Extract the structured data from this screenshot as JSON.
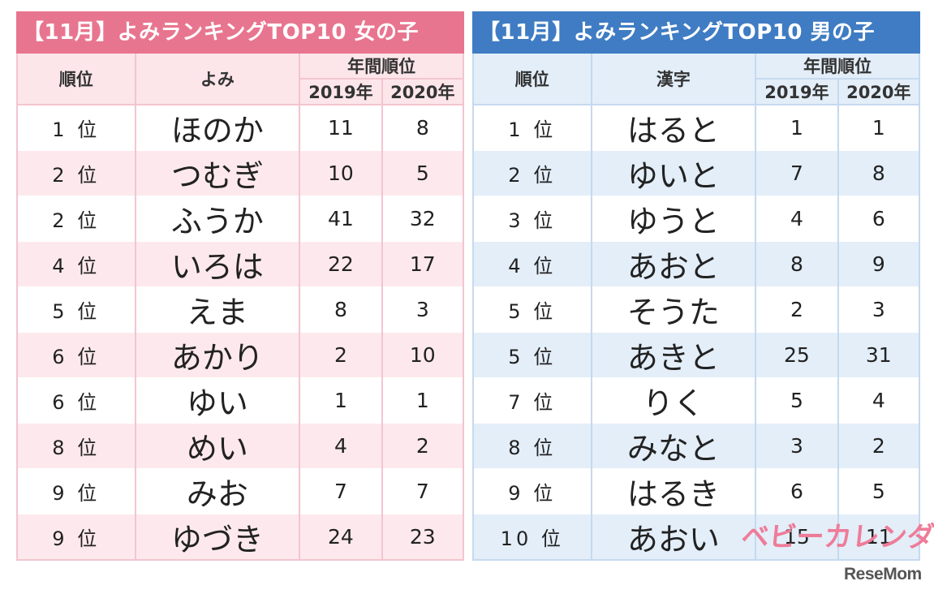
{
  "girls": {
    "title": "【11月】よみランキングTOP10 女の子",
    "headers": {
      "rank": "順位",
      "name": "よみ",
      "year_group": "年間順位",
      "y2019": "2019年",
      "y2020": "2020年"
    },
    "rows": [
      {
        "rank": "1 位",
        "name": "ほのか",
        "y2019": "11",
        "y2020": "8"
      },
      {
        "rank": "2 位",
        "name": "つむぎ",
        "y2019": "10",
        "y2020": "5"
      },
      {
        "rank": "2 位",
        "name": "ふうか",
        "y2019": "41",
        "y2020": "32"
      },
      {
        "rank": "4 位",
        "name": "いろは",
        "y2019": "22",
        "y2020": "17"
      },
      {
        "rank": "5 位",
        "name": "えま",
        "y2019": "8",
        "y2020": "3"
      },
      {
        "rank": "6 位",
        "name": "あかり",
        "y2019": "2",
        "y2020": "10"
      },
      {
        "rank": "6 位",
        "name": "ゆい",
        "y2019": "1",
        "y2020": "1"
      },
      {
        "rank": "8 位",
        "name": "めい",
        "y2019": "4",
        "y2020": "2"
      },
      {
        "rank": "9 位",
        "name": "みお",
        "y2019": "7",
        "y2020": "7"
      },
      {
        "rank": "9 位",
        "name": "ゆづき",
        "y2019": "24",
        "y2020": "23"
      }
    ]
  },
  "boys": {
    "title": "【11月】よみランキングTOP10 男の子",
    "headers": {
      "rank": "順位",
      "name": "漢字",
      "year_group": "年間順位",
      "y2019": "2019年",
      "y2020": "2020年"
    },
    "rows": [
      {
        "rank": "1 位",
        "name": "はると",
        "y2019": "1",
        "y2020": "1"
      },
      {
        "rank": "2 位",
        "name": "ゆいと",
        "y2019": "7",
        "y2020": "8"
      },
      {
        "rank": "3 位",
        "name": "ゆうと",
        "y2019": "4",
        "y2020": "6"
      },
      {
        "rank": "4 位",
        "name": "あおと",
        "y2019": "8",
        "y2020": "9"
      },
      {
        "rank": "5 位",
        "name": "そうた",
        "y2019": "2",
        "y2020": "3"
      },
      {
        "rank": "5 位",
        "name": "あきと",
        "y2019": "25",
        "y2020": "31"
      },
      {
        "rank": "7 位",
        "name": "りく",
        "y2019": "5",
        "y2020": "4"
      },
      {
        "rank": "8 位",
        "name": "みなと",
        "y2019": "3",
        "y2020": "2"
      },
      {
        "rank": "9 位",
        "name": "はるき",
        "y2019": "6",
        "y2020": "5"
      },
      {
        "rank": "10 位",
        "name": "あおい",
        "y2019": "15",
        "y2020": "11"
      }
    ]
  },
  "logos": {
    "baby_calendar": "ベビーカレンダー",
    "resemom": "ReseMom"
  },
  "colors": {
    "girls_accent": "#e8758f",
    "boys_accent": "#3f7cc3",
    "girls_stripe": "#fde9ed",
    "boys_stripe": "#e3eef9"
  }
}
